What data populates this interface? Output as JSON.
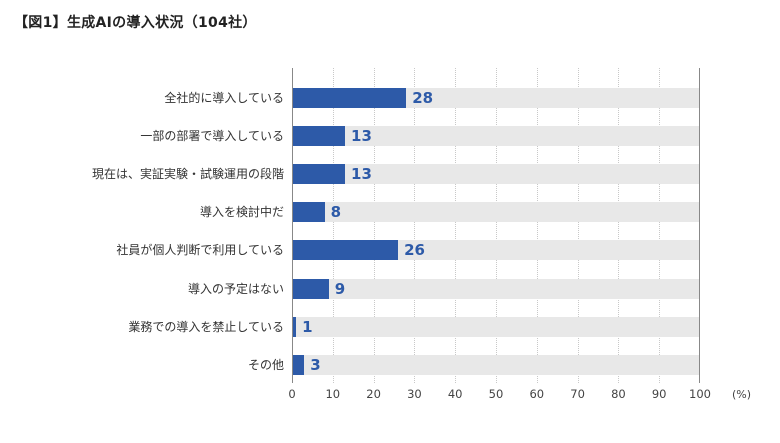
{
  "title": "【図1】生成AIの導入状況（104社）",
  "unit": "(%)",
  "colors": {
    "bar": "#2d5aa8",
    "track": "#e8e8e8",
    "value_text": "#2d5aa8"
  },
  "chart_data": {
    "type": "bar",
    "orientation": "horizontal",
    "title": "【図1】生成AIの導入状況（104社）",
    "xlabel": "(%)",
    "ylabel": "",
    "xlim": [
      0,
      100
    ],
    "xticks": [
      0,
      10,
      20,
      30,
      40,
      50,
      60,
      70,
      80,
      90,
      100
    ],
    "grid": true,
    "legend": null,
    "categories": [
      "全社的に導入している",
      "一部の部署で導入している",
      "現在は、実証実験・試験運用の段階",
      "導入を検討中だ",
      "社員が個人判断で利用している",
      "導入の予定はない",
      "業務での導入を禁止している",
      "その他"
    ],
    "values": [
      28,
      13,
      13,
      8,
      26,
      9,
      1,
      3
    ]
  }
}
